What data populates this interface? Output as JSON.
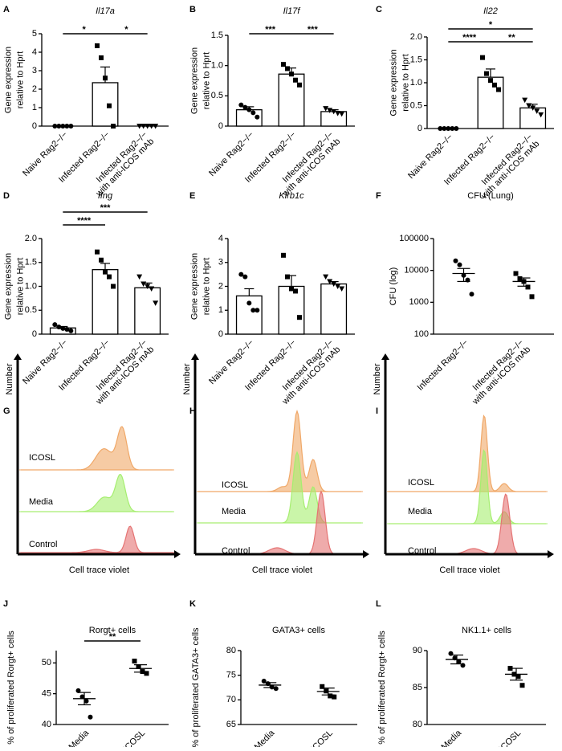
{
  "chart_data": [
    {
      "type": "bar",
      "panel": "A",
      "title": "Il17a",
      "ylabel": [
        "Gene expression",
        "relative to Hprt"
      ],
      "categories": [
        [
          "Naive Rag2−/−"
        ],
        [
          "Infected Rag2−/−"
        ],
        [
          "Infected Rag2−/−",
          "with anti-ICOS mAb"
        ]
      ],
      "values": [
        0,
        2.35,
        0
      ],
      "errors": [
        0,
        0.85,
        0
      ],
      "points": [
        [
          0,
          0,
          0,
          0,
          0
        ],
        [
          4.35,
          3.7,
          2.6,
          1.1,
          0
        ],
        [
          0,
          0,
          0,
          0,
          0
        ]
      ],
      "markers": [
        "circle",
        "square",
        "triangle"
      ],
      "ylim": [
        0,
        5
      ],
      "yticks": [
        0,
        1,
        2,
        3,
        4,
        5
      ],
      "annotations": [
        {
          "text": "*",
          "x": [
            0,
            1
          ]
        },
        {
          "text": "*",
          "x": [
            1,
            2
          ]
        }
      ]
    },
    {
      "type": "bar",
      "panel": "B",
      "title": "Il17f",
      "ylabel": [
        "Gene expression",
        "relative to Hprt"
      ],
      "categories": [
        [
          "Naive Rag2−/−"
        ],
        [
          "Infected Rag2−/−"
        ],
        [
          "Infected Rag2−/−",
          "with anti-ICOS mAb"
        ]
      ],
      "values": [
        0.27,
        0.86,
        0.24
      ],
      "errors": [
        0.05,
        0.1,
        0.03
      ],
      "points": [
        [
          0.35,
          0.31,
          0.27,
          0.22,
          0.15
        ],
        [
          1.02,
          0.95,
          0.86,
          0.76,
          0.68
        ],
        [
          0.29,
          0.26,
          0.24,
          0.21,
          0.2
        ]
      ],
      "markers": [
        "circle",
        "square",
        "triangle"
      ],
      "ylim": [
        0,
        1.5
      ],
      "yticks": [
        0,
        0.5,
        {
          "value": 1,
          "label": "1.0"
        },
        1.5
      ],
      "annotations": [
        {
          "text": "***",
          "x": [
            0,
            1
          ]
        },
        {
          "text": "***",
          "x": [
            1,
            2
          ]
        }
      ]
    },
    {
      "type": "bar",
      "panel": "C",
      "title": "Il22",
      "ylabel": [
        "Gene expression",
        "relative to Hprt"
      ],
      "categories": [
        [
          "Naive Rag2−/−"
        ],
        [
          "Infected Rag2−/−"
        ],
        [
          "Infected Rag2−/−",
          "with anti-ICOS mAb"
        ]
      ],
      "values": [
        0,
        1.12,
        0.45
      ],
      "errors": [
        0,
        0.18,
        0.08
      ],
      "points": [
        [
          0,
          0,
          0,
          0,
          0
        ],
        [
          1.55,
          1.2,
          1.05,
          0.95,
          0.85
        ],
        [
          0.62,
          0.5,
          0.45,
          0.38,
          0.3
        ]
      ],
      "markers": [
        "circle",
        "square",
        "triangle"
      ],
      "ylim": [
        0,
        2
      ],
      "yticks": [
        0,
        0.5,
        {
          "value": 1,
          "label": "1.0"
        },
        1.5,
        {
          "value": 2,
          "label": "2.0"
        }
      ],
      "annotations": [
        {
          "text": "****",
          "x": [
            0,
            1
          ]
        },
        {
          "text": "*",
          "x": [
            0,
            2
          ]
        },
        {
          "text": "**",
          "x": [
            1,
            2
          ]
        }
      ]
    },
    {
      "type": "bar",
      "panel": "D",
      "title": "Ifng",
      "ylabel": [
        "Gene expression",
        "relative to Hprt"
      ],
      "categories": [
        [
          "Naive Rag2−/−"
        ],
        [
          "Infected Rag2−/−"
        ],
        [
          "Infected Rag2−/−",
          "with anti-ICOS mAb"
        ]
      ],
      "values": [
        0.13,
        1.35,
        0.97
      ],
      "errors": [
        0.03,
        0.13,
        0.1
      ],
      "points": [
        [
          0.2,
          0.15,
          0.12,
          0.1,
          0.07
        ],
        [
          1.72,
          1.55,
          1.3,
          1.2,
          1.0
        ],
        [
          1.2,
          1.05,
          1.0,
          0.95,
          0.65
        ]
      ],
      "markers": [
        "circle",
        "square",
        "triangle"
      ],
      "ylim": [
        0,
        2
      ],
      "yticks": [
        0,
        0.5,
        {
          "value": 1,
          "label": "1.0"
        },
        1.5,
        {
          "value": 2,
          "label": "2.0"
        }
      ],
      "annotations": [
        {
          "text": "****",
          "x": [
            0,
            1
          ]
        },
        {
          "text": "***",
          "x": [
            0,
            2
          ]
        }
      ]
    },
    {
      "type": "bar",
      "panel": "E",
      "title": "Klrb1c",
      "ylabel": [
        "Gene expression",
        "relative to Hprt"
      ],
      "categories": [
        [
          "Naive Rag2−/−"
        ],
        [
          "Infected Rag2−/−"
        ],
        [
          "Infected Rag2−/−",
          "with anti-ICOS mAb"
        ]
      ],
      "values": [
        1.6,
        2.0,
        2.1
      ],
      "errors": [
        0.3,
        0.45,
        0.1
      ],
      "points": [
        [
          2.5,
          2.4,
          1.3,
          1.0,
          1.0
        ],
        [
          3.3,
          2.4,
          1.9,
          1.8,
          0.7
        ],
        [
          2.4,
          2.2,
          2.1,
          2.0,
          1.9
        ]
      ],
      "markers": [
        "circle",
        "square",
        "triangle"
      ],
      "ylim": [
        0,
        4
      ],
      "yticks": [
        0,
        1,
        2,
        3,
        4
      ],
      "annotations": []
    },
    {
      "type": "dot",
      "panel": "F",
      "title": "CFU (Lung)",
      "ylabel": [
        "CFU (log)"
      ],
      "categories": [
        [
          "Infected Rag2−/−"
        ],
        [
          "Infected Rag2−/−",
          "with anti-ICOS mAb"
        ]
      ],
      "values": [
        8000,
        4500
      ],
      "errors": [
        3500,
        1300
      ],
      "points": [
        [
          20000,
          15000,
          7000,
          5000,
          1800
        ],
        [
          8000,
          5500,
          4500,
          3000,
          1500
        ]
      ],
      "markers": [
        "circle",
        "square"
      ],
      "yscale": "log",
      "ylim": [
        100,
        100000
      ],
      "yticks": [
        100,
        1000,
        10000,
        100000
      ],
      "annotations": []
    },
    {
      "type": "flow",
      "panel": "G",
      "ylabel": "Number",
      "xlabel": "Cell trace violet",
      "series": [
        {
          "name": "ICOSL",
          "color": "#f0a868"
        },
        {
          "name": "Media",
          "color": "#a6ee70"
        },
        {
          "name": "Control",
          "color": "#e57373"
        }
      ]
    },
    {
      "type": "flow",
      "panel": "H",
      "ylabel": "Number",
      "xlabel": "Cell trace violet",
      "series": [
        {
          "name": "ICOSL",
          "color": "#f0a868"
        },
        {
          "name": "Media",
          "color": "#a6ee70"
        },
        {
          "name": "Control",
          "color": "#e57373"
        }
      ]
    },
    {
      "type": "flow",
      "panel": "I",
      "ylabel": "Number",
      "xlabel": "Cell trace violet",
      "series": [
        {
          "name": "ICOSL",
          "color": "#f0a868"
        },
        {
          "name": "Media",
          "color": "#a6ee70"
        },
        {
          "name": "Control",
          "color": "#e57373"
        }
      ]
    },
    {
      "type": "dot",
      "panel": "J",
      "title": "Rorgt+ cells",
      "ylabel": [
        "% of proliferated Rorgt+ cells"
      ],
      "categories": [
        [
          "Media"
        ],
        [
          "ICOSL"
        ]
      ],
      "values": [
        44.2,
        49.1
      ],
      "errors": [
        1.0,
        0.6
      ],
      "points": [
        [
          45.5,
          44.5,
          43.8,
          41.2
        ],
        [
          50.3,
          49.4,
          48.6,
          48.3
        ]
      ],
      "markers": [
        "circle",
        "square"
      ],
      "ylim": [
        40,
        52
      ],
      "yticks": [
        40,
        45,
        50
      ],
      "annotations": [
        {
          "text": "**",
          "x": [
            0,
            1
          ]
        }
      ]
    },
    {
      "type": "dot",
      "panel": "K",
      "title": "GATA3+ cells",
      "ylabel": [
        "% of proliferated GATA3+ cells"
      ],
      "categories": [
        [
          "Media"
        ],
        [
          "ICOSL"
        ]
      ],
      "values": [
        73.0,
        71.7
      ],
      "errors": [
        0.5,
        0.7
      ],
      "points": [
        [
          73.8,
          73.3,
          72.6,
          72.3
        ],
        [
          72.7,
          71.8,
          70.8,
          70.6
        ]
      ],
      "markers": [
        "circle",
        "square"
      ],
      "ylim": [
        65,
        80
      ],
      "yticks": [
        65,
        70,
        75,
        80
      ],
      "annotations": []
    },
    {
      "type": "dot",
      "panel": "L",
      "title": "NK1.1+ cells",
      "ylabel": [
        "% of proliferated Rorgt+ cells"
      ],
      "categories": [
        [
          "Media"
        ],
        [
          "ICOSL"
        ]
      ],
      "values": [
        88.8,
        86.8
      ],
      "errors": [
        0.6,
        0.8
      ],
      "points": [
        [
          89.6,
          89.0,
          88.5,
          88.0
        ],
        [
          87.6,
          86.8,
          86.5,
          85.3
        ]
      ],
      "markers": [
        "circle",
        "square"
      ],
      "ylim": [
        80,
        90
      ],
      "yticks": [
        80,
        85,
        90
      ],
      "annotations": []
    }
  ]
}
